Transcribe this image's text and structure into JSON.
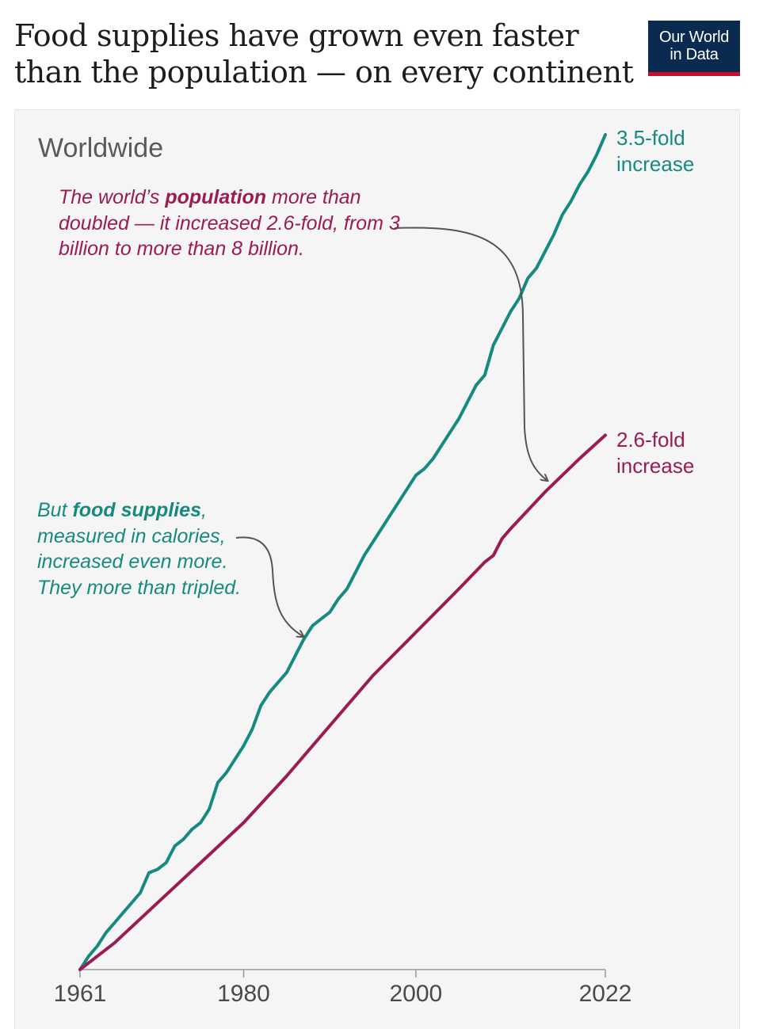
{
  "title": "Food supplies have grown even faster than the population — on every continent",
  "logo": {
    "line1": "Our World",
    "line2": "in Data"
  },
  "colors": {
    "food": "#168a80",
    "population": "#9b1b54",
    "logo_bg": "#0b2a4f",
    "logo_accent": "#c8102e"
  },
  "chart_data": {
    "type": "line",
    "title": "Worldwide",
    "xlabel": "",
    "ylabel": "",
    "xlim": [
      1961,
      2022
    ],
    "ylim": [
      1.0,
      3.5
    ],
    "x_ticks": [
      1961,
      1980,
      2000,
      2022
    ],
    "series": [
      {
        "name": "Food supplies (calories)",
        "color": "#168a80",
        "end_label": [
          "3.5-fold",
          "increase"
        ],
        "x": [
          1961,
          1962,
          1963,
          1964,
          1965,
          1966,
          1967,
          1968,
          1969,
          1970,
          1971,
          1972,
          1973,
          1974,
          1975,
          1976,
          1977,
          1978,
          1979,
          1980,
          1981,
          1982,
          1983,
          1984,
          1985,
          1986,
          1987,
          1988,
          1989,
          1990,
          1991,
          1992,
          1993,
          1994,
          1995,
          1996,
          1997,
          1998,
          1999,
          2000,
          2001,
          2002,
          2003,
          2004,
          2005,
          2006,
          2007,
          2008,
          2009,
          2010,
          2011,
          2012,
          2013,
          2014,
          2015,
          2016,
          2017,
          2018,
          2019,
          2020,
          2021,
          2022
        ],
        "values": [
          1.0,
          1.04,
          1.07,
          1.11,
          1.14,
          1.17,
          1.2,
          1.23,
          1.29,
          1.3,
          1.32,
          1.37,
          1.39,
          1.42,
          1.44,
          1.48,
          1.56,
          1.59,
          1.63,
          1.67,
          1.72,
          1.79,
          1.83,
          1.86,
          1.89,
          1.94,
          1.99,
          2.03,
          2.05,
          2.07,
          2.11,
          2.14,
          2.19,
          2.24,
          2.28,
          2.32,
          2.36,
          2.4,
          2.44,
          2.48,
          2.5,
          2.53,
          2.57,
          2.61,
          2.65,
          2.7,
          2.75,
          2.78,
          2.87,
          2.92,
          2.97,
          3.01,
          3.07,
          3.1,
          3.15,
          3.2,
          3.26,
          3.3,
          3.35,
          3.39,
          3.44,
          3.5
        ]
      },
      {
        "name": "Population",
        "color": "#9b1b54",
        "end_label": [
          "2.6-fold",
          "increase"
        ],
        "x": [
          1961,
          1965,
          1970,
          1975,
          1980,
          1985,
          1990,
          1995,
          2000,
          2005,
          2008,
          2009,
          2010,
          2011,
          2015,
          2019,
          2022
        ],
        "values": [
          1.0,
          1.08,
          1.2,
          1.32,
          1.44,
          1.58,
          1.73,
          1.88,
          2.01,
          2.14,
          2.22,
          2.24,
          2.29,
          2.32,
          2.43,
          2.53,
          2.6
        ]
      }
    ],
    "annotations": [
      {
        "pre": "The world’s ",
        "bold": "population",
        "post": " more than doubled — it increased 2.6-fold, from 3 billion to more than 8 billion.",
        "color": "#9b1b54"
      },
      {
        "pre": "But ",
        "bold": "food supplies",
        "post": ", measured in calories, increased even more. They more than tripled.",
        "color": "#168a80"
      }
    ]
  }
}
